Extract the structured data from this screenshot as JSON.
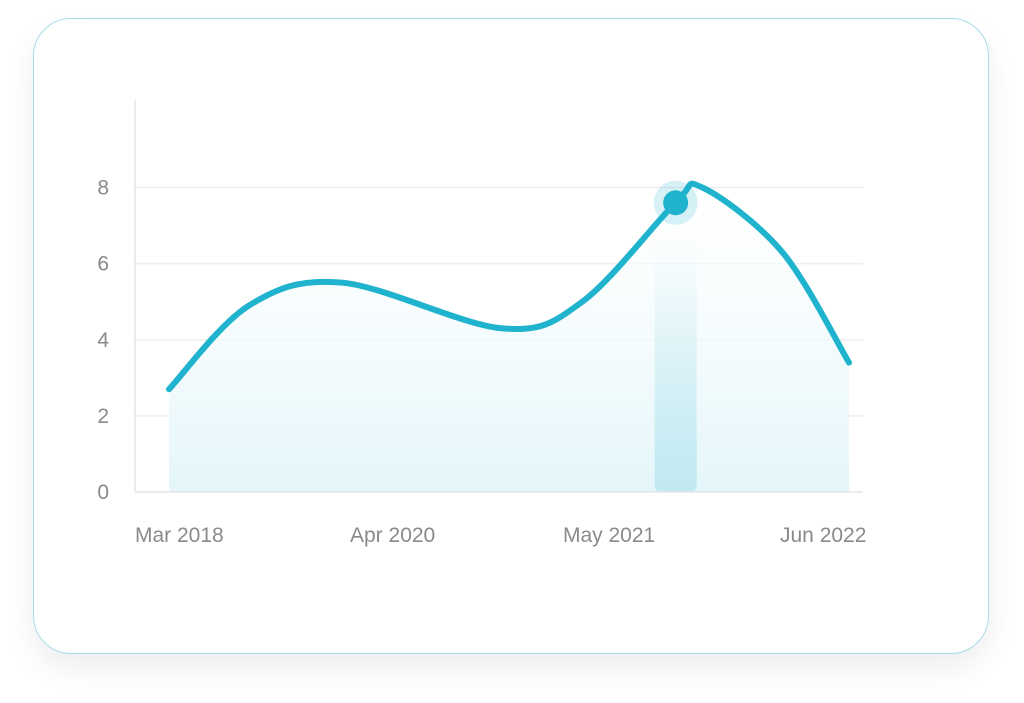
{
  "chart_data": {
    "type": "area",
    "title": "",
    "xlabel": "",
    "ylabel": "",
    "x_tick_labels": [
      "Mar 2018",
      "Apr 2020",
      "May 2021",
      "Jun 2022"
    ],
    "y_ticks": [
      "0",
      "2",
      "4",
      "6",
      "8"
    ],
    "ylim": [
      0,
      10.3
    ],
    "grid": true,
    "series": [
      {
        "x": [
          "Mar 2018",
          "Sep 2018",
          "Apr 2019",
          "Apr 2020",
          "Oct 2020",
          "May 2021",
          "Jul 2021",
          "Jan 2022",
          "Jun 2022"
        ],
        "values": [
          2.7,
          4.9,
          5.5,
          4.3,
          5.0,
          7.6,
          8.0,
          6.3,
          3.4
        ]
      }
    ],
    "highlight": {
      "x": "May 2021",
      "value": 7.6
    },
    "colors": {
      "line": "#1fb3ce",
      "fill": "#e4f6fa",
      "grid": "#eeeeee",
      "axis": "#e6e6e6",
      "text": "#8a8a8a"
    }
  }
}
